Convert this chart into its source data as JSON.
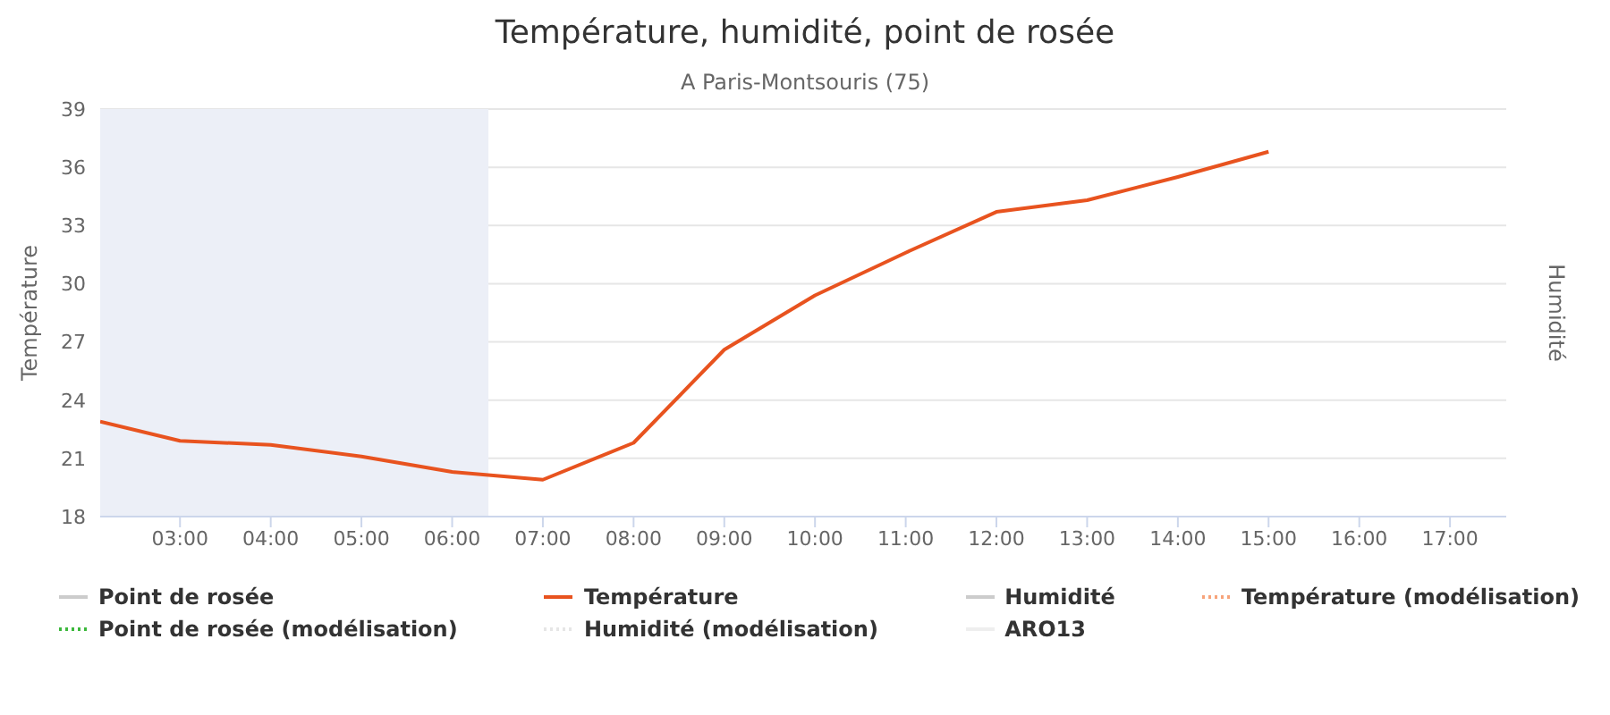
{
  "chart_data": {
    "type": "line",
    "title": "Température, humidité, point de rosée",
    "subtitle": "A Paris-Montsouris (75)",
    "ylabel": "Température",
    "y2label": "Humidité",
    "x": [
      2.12,
      3,
      4,
      5,
      6,
      7,
      8,
      9,
      10,
      11,
      12,
      13,
      14,
      15
    ],
    "series": [
      {
        "name": "Point de rosée",
        "color": "#cccccc",
        "values": [
          null,
          null,
          null,
          null,
          null,
          null,
          null,
          null,
          null,
          null,
          null,
          null,
          null,
          null
        ]
      },
      {
        "name": "Température",
        "color": "#e8531f",
        "values": [
          22.9,
          21.9,
          21.7,
          21.1,
          20.3,
          19.9,
          21.8,
          26.6,
          29.4,
          31.6,
          33.7,
          34.3,
          35.5,
          36.8
        ]
      },
      {
        "name": "Humidité",
        "color": "#cccccc",
        "values": [
          null,
          null,
          null,
          null,
          null,
          null,
          null,
          null,
          null,
          null,
          null,
          null,
          null,
          null
        ]
      },
      {
        "name": "Température (modélisation)",
        "color": "#f7a37a",
        "line_style": "dotted",
        "values": [
          null,
          null,
          null,
          null,
          null,
          null,
          null,
          null,
          null,
          null,
          null,
          null,
          null,
          null
        ]
      },
      {
        "name": "Point de rosée (modélisation)",
        "color": "#3cb83c",
        "line_style": "dotted",
        "values": [
          null,
          null,
          null,
          null,
          null,
          null,
          null,
          null,
          null,
          null,
          null,
          null,
          null,
          null
        ]
      },
      {
        "name": "Humidité (modélisation)",
        "color": "#e6e6e6",
        "line_style": "dotted",
        "values": [
          null,
          null,
          null,
          null,
          null,
          null,
          null,
          null,
          null,
          null,
          null,
          null,
          null,
          null
        ]
      },
      {
        "name": "ARO13",
        "color": "#eeeeee",
        "values": [
          null,
          null,
          null,
          null,
          null,
          null,
          null,
          null,
          null,
          null,
          null,
          null,
          null,
          null
        ]
      }
    ],
    "xlim": [
      2.12,
      17.62
    ],
    "xticks": [
      {
        "value": 3,
        "label": "03:00"
      },
      {
        "value": 4,
        "label": "04:00"
      },
      {
        "value": 5,
        "label": "05:00"
      },
      {
        "value": 6,
        "label": "06:00"
      },
      {
        "value": 7,
        "label": "07:00"
      },
      {
        "value": 8,
        "label": "08:00"
      },
      {
        "value": 9,
        "label": "09:00"
      },
      {
        "value": 10,
        "label": "10:00"
      },
      {
        "value": 11,
        "label": "11:00"
      },
      {
        "value": 12,
        "label": "12:00"
      },
      {
        "value": 13,
        "label": "13:00"
      },
      {
        "value": 14,
        "label": "14:00"
      },
      {
        "value": 15,
        "label": "15:00"
      },
      {
        "value": 16,
        "label": "16:00"
      },
      {
        "value": 17,
        "label": "17:00"
      }
    ],
    "ylim": [
      18,
      39
    ],
    "yticks": [
      18,
      21,
      24,
      27,
      30,
      33,
      36,
      39
    ],
    "bands": [
      {
        "axis": "x",
        "from": 2.12,
        "to": 6.4,
        "color": "#eceff7"
      }
    ],
    "grid": "y",
    "legend": "bottom",
    "marker": "none",
    "line_style": "solid"
  }
}
